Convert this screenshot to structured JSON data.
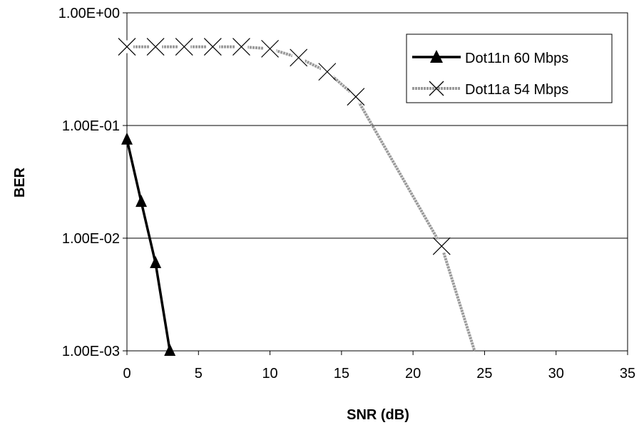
{
  "chart_data": {
    "type": "line",
    "xlabel": "SNR (dB)",
    "ylabel": "BER",
    "xlim": [
      0,
      35
    ],
    "ylim": [
      0.001,
      1
    ],
    "y_scale": "log",
    "x_ticks": [
      0,
      5,
      10,
      15,
      20,
      25,
      30,
      35
    ],
    "x_tick_labels": [
      "0",
      "5",
      "10",
      "15",
      "20",
      "25",
      "30",
      "35"
    ],
    "y_ticks": [
      1,
      0.1,
      0.01,
      0.001
    ],
    "y_tick_labels": [
      "1.00E+00",
      "1.00E-01",
      "1.00E-02",
      "1.00E-03"
    ],
    "grid": "horizontal major lines",
    "legend_position": "top-right",
    "series": [
      {
        "name": "Dot11n 60 Mbps",
        "color": "#000000",
        "marker": "triangle",
        "line": "solid",
        "x": [
          0,
          1,
          2,
          3
        ],
        "y": [
          0.075,
          0.021,
          0.006,
          0.001
        ]
      },
      {
        "name": "Dot11a 54 Mbps",
        "color": "#9a9a9a",
        "marker": "x",
        "line": "gray dotted-pattern",
        "x": [
          0,
          2,
          4,
          6,
          8,
          10,
          12,
          14,
          16,
          22,
          24.3
        ],
        "y": [
          0.5,
          0.5,
          0.5,
          0.5,
          0.5,
          0.48,
          0.4,
          0.3,
          0.18,
          0.0085,
          0.001
        ],
        "marker_points": [
          0,
          2,
          4,
          6,
          8,
          10,
          12,
          14,
          16,
          22
        ]
      }
    ]
  }
}
